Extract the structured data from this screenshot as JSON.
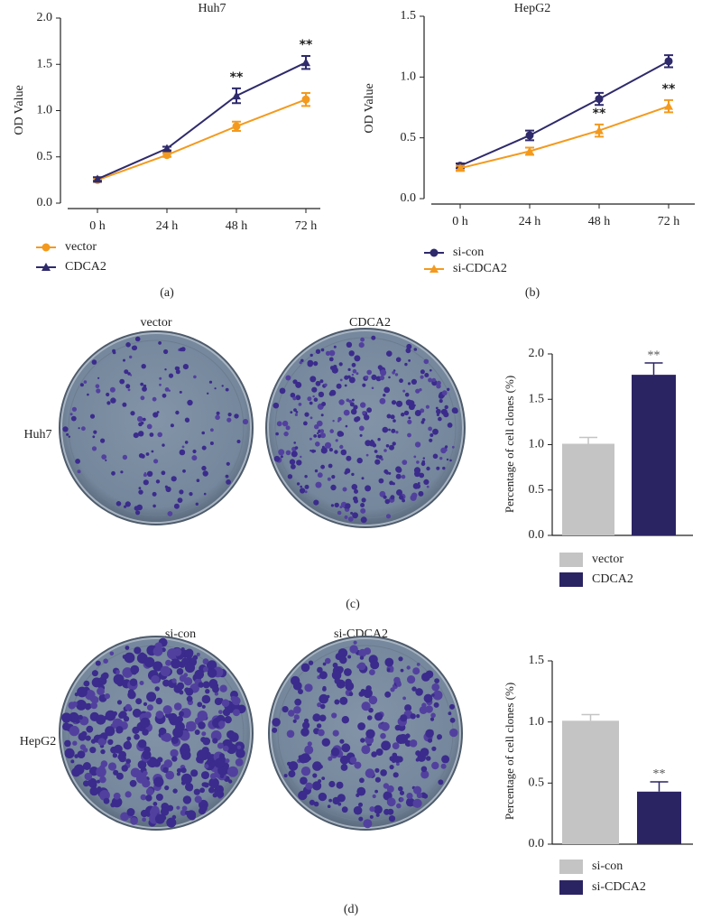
{
  "chart_data": [
    {
      "type": "line",
      "panel_label": "(a)",
      "title": "Huh7",
      "y_label": "OD Value",
      "categories": [
        "0 h",
        "24 h",
        "48 h",
        "72 h"
      ],
      "series": [
        {
          "name": "vector",
          "color": "#f39a1e",
          "marker": "circle",
          "values": [
            0.25,
            0.52,
            0.83,
            1.12
          ],
          "errors": [
            0.02,
            0.02,
            0.05,
            0.07
          ],
          "significance": [
            null,
            null,
            null,
            null
          ]
        },
        {
          "name": "CDCA2",
          "color": "#2e2a6b",
          "marker": "triangle",
          "values": [
            0.26,
            0.59,
            1.16,
            1.52
          ],
          "errors": [
            0.02,
            0.02,
            0.08,
            0.07
          ],
          "significance": [
            null,
            null,
            "**",
            "**"
          ]
        }
      ],
      "ylim": [
        0,
        2
      ],
      "yticks": [
        {
          "value": 0,
          "label": "0.0"
        },
        0.5,
        {
          "value": 1,
          "label": "1.0"
        },
        1.5,
        {
          "value": 2,
          "label": "2.0"
        }
      ]
    },
    {
      "type": "line",
      "panel_label": "(b)",
      "title": "HepG2",
      "y_label": "OD Value",
      "categories": [
        "0 h",
        "24 h",
        "48 h",
        "72 h"
      ],
      "series": [
        {
          "name": "si-con",
          "color": "#2e2a6b",
          "marker": "circle",
          "values": [
            0.27,
            0.52,
            0.82,
            1.13
          ],
          "errors": [
            0.02,
            0.04,
            0.05,
            0.05
          ],
          "significance": [
            null,
            null,
            null,
            null
          ]
        },
        {
          "name": "si-CDCA2",
          "color": "#f39a1e",
          "marker": "triangle",
          "values": [
            0.25,
            0.39,
            0.56,
            0.76
          ],
          "errors": [
            0.02,
            0.03,
            0.05,
            0.05
          ],
          "significance": [
            null,
            null,
            "**",
            "**"
          ]
        }
      ],
      "ylim": [
        0,
        1.5
      ],
      "yticks": [
        {
          "value": 0,
          "label": "0.0"
        },
        0.5,
        {
          "value": 1,
          "label": "1.0"
        },
        1.5
      ]
    },
    {
      "type": "bar",
      "panel_label": "(c)",
      "row_label": "Huh7",
      "dish_labels": [
        "vector",
        "CDCA2"
      ],
      "y_label": "Percentage of cell clones (%)",
      "categories": [
        "vector",
        "CDCA2"
      ],
      "values": [
        1.01,
        1.77
      ],
      "errors": [
        0.07,
        0.13
      ],
      "colors": [
        "#c4c4c4",
        "#2b2463"
      ],
      "significance": [
        null,
        "**"
      ],
      "ylim": [
        0,
        2
      ],
      "yticks": [
        {
          "value": 0,
          "label": "0.0"
        },
        0.5,
        {
          "value": 1,
          "label": "1.0"
        },
        1.5,
        {
          "value": 2,
          "label": "2.0"
        }
      ]
    },
    {
      "type": "bar",
      "panel_label": "(d)",
      "row_label": "HepG2",
      "dish_labels": [
        "si-con",
        "si-CDCA2"
      ],
      "y_label": "Percentage of cell clones (%)",
      "categories": [
        "si-con",
        "si-CDCA2"
      ],
      "values": [
        1.01,
        0.43
      ],
      "errors": [
        0.05,
        0.08
      ],
      "colors": [
        "#c4c4c4",
        "#2b2463"
      ],
      "significance": [
        null,
        "**"
      ],
      "ylim": [
        0,
        1.5
      ],
      "yticks": [
        {
          "value": 0,
          "label": "0.0"
        },
        0.5,
        {
          "value": 1,
          "label": "1.0"
        },
        1.5
      ]
    }
  ]
}
